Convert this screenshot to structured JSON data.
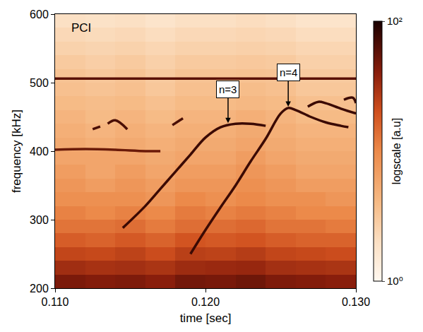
{
  "chart_data": {
    "type": "heatmap",
    "xlabel": "time [sec]",
    "ylabel": "frequency [kHz]",
    "xlim": [
      0.11,
      0.13
    ],
    "xticks": [
      {
        "value": 0.11,
        "label": "0.110"
      },
      {
        "value": 0.12,
        "label": "0.120"
      },
      {
        "value": 0.13,
        "label": "0.130"
      }
    ],
    "ylim": [
      200,
      600
    ],
    "yticks": [
      200,
      300,
      400,
      500,
      600
    ],
    "grid": false,
    "cells": {
      "x": [
        0.111,
        0.113,
        0.115,
        0.117,
        0.119,
        0.121,
        0.123,
        0.125,
        0.127,
        0.129
      ],
      "y": [
        210,
        230,
        250,
        270,
        290,
        310,
        330,
        350,
        370,
        390,
        410,
        430,
        450,
        470,
        490,
        510,
        530,
        550,
        570,
        590
      ],
      "z": [
        [
          45,
          42,
          44,
          40,
          48,
          46,
          50,
          44,
          42,
          40
        ],
        [
          32,
          30,
          31,
          29,
          33,
          34,
          35,
          31,
          30,
          29
        ],
        [
          23,
          22,
          24,
          21,
          25,
          24,
          26,
          23,
          22,
          21
        ],
        [
          17,
          16,
          18,
          16,
          19,
          18,
          19,
          17,
          16,
          16
        ],
        [
          13,
          13,
          14,
          12,
          14,
          14,
          15,
          13,
          13,
          12
        ],
        [
          11,
          10,
          11,
          10,
          12,
          11,
          12,
          11,
          10,
          10
        ],
        [
          9,
          9,
          9,
          8,
          10,
          9,
          10,
          9,
          9,
          8
        ],
        [
          8,
          7,
          8,
          7,
          8,
          8,
          9,
          8,
          7,
          7
        ],
        [
          7,
          6,
          7,
          6,
          7,
          7,
          8,
          7,
          6,
          6
        ],
        [
          6,
          6,
          6,
          5.5,
          6,
          6,
          7,
          6,
          5.5,
          5.5
        ],
        [
          5.5,
          5,
          5.5,
          5,
          5.5,
          5.5,
          6,
          5.5,
          5,
          5
        ],
        [
          5,
          4.5,
          5,
          4.5,
          5,
          5,
          5.5,
          5,
          4.5,
          4.5
        ],
        [
          4.5,
          4,
          4.5,
          4,
          4.5,
          4.5,
          5,
          4.5,
          4,
          4
        ],
        [
          4,
          3.8,
          4,
          3.6,
          4,
          4,
          4.2,
          4,
          3.6,
          3.6
        ],
        [
          3.6,
          3.4,
          3.6,
          3.2,
          3.6,
          3.6,
          3.8,
          3.6,
          3.2,
          3.2
        ],
        [
          3.4,
          3.2,
          3.4,
          3,
          3.4,
          3.4,
          3.5,
          3.4,
          3,
          3
        ],
        [
          3,
          2.8,
          3,
          2.7,
          3,
          3,
          3.1,
          3,
          2.7,
          2.7
        ],
        [
          2.6,
          2.5,
          2.6,
          2.4,
          2.6,
          2.6,
          2.7,
          2.6,
          2.4,
          2.4
        ],
        [
          2.3,
          2.2,
          2.3,
          2.1,
          2.3,
          2.3,
          2.4,
          2.3,
          2.1,
          2.1
        ],
        [
          2,
          1.9,
          2,
          1.8,
          2,
          2,
          2.1,
          2,
          1.8,
          1.8
        ]
      ]
    },
    "colorbar": {
      "title": "logscale [a.u]",
      "range": [
        1,
        100
      ],
      "ticks": [
        {
          "value": 1,
          "label": "10⁰"
        },
        {
          "value": 100,
          "label": "10²"
        }
      ],
      "log": true
    },
    "series": [
      {
        "type": "line",
        "color": "#5a1005",
        "x": [
          0.11,
          0.13
        ],
        "y": [
          506,
          506
        ]
      },
      {
        "type": "line",
        "color": "#6a1a08",
        "x": [
          0.11,
          0.112,
          0.114,
          0.116,
          0.117
        ],
        "y": [
          402,
          403,
          402,
          400,
          400
        ]
      },
      {
        "type": "line",
        "color": "#4a0e05",
        "x": [
          0.1125,
          0.113
        ],
        "y": [
          432,
          436
        ]
      },
      {
        "type": "line",
        "color": "#4a0e05",
        "x": [
          0.1135,
          0.114,
          0.1148
        ],
        "y": [
          440,
          445,
          432
        ]
      },
      {
        "type": "line",
        "color": "#4a0e05",
        "x": [
          0.1178,
          0.1185
        ],
        "y": [
          438,
          448
        ]
      },
      {
        "type": "line",
        "color": "#3b0a04",
        "x": [
          0.1145,
          0.116,
          0.117,
          0.118,
          0.119,
          0.12,
          0.121,
          0.122,
          0.123,
          0.124
        ],
        "y": [
          288,
          320,
          345,
          370,
          395,
          420,
          435,
          440,
          440,
          437
        ]
      },
      {
        "type": "line",
        "color": "#3b0a04",
        "x": [
          0.119,
          0.12,
          0.121,
          0.122,
          0.123,
          0.124,
          0.125,
          0.1255,
          0.126,
          0.127,
          0.128,
          0.129,
          0.1295
        ],
        "y": [
          250,
          285,
          318,
          350,
          385,
          418,
          455,
          463,
          460,
          450,
          442,
          437,
          435
        ]
      },
      {
        "type": "line",
        "color": "#3b0a04",
        "x": [
          0.1268,
          0.1275,
          0.128,
          0.129,
          0.13
        ],
        "y": [
          465,
          472,
          470,
          462,
          455
        ]
      },
      {
        "type": "line",
        "color": "#3b0a04",
        "x": [
          0.1292,
          0.1298,
          0.13
        ],
        "y": [
          475,
          478,
          470
        ]
      }
    ],
    "annotations": [
      {
        "text": "PCI",
        "x": 0.111,
        "y": 580,
        "arrow": false
      },
      {
        "text": "n=3",
        "x": 0.1215,
        "y": 441,
        "arrow": true
      },
      {
        "text": "n=4",
        "x": 0.1255,
        "y": 465,
        "arrow": true
      }
    ]
  }
}
